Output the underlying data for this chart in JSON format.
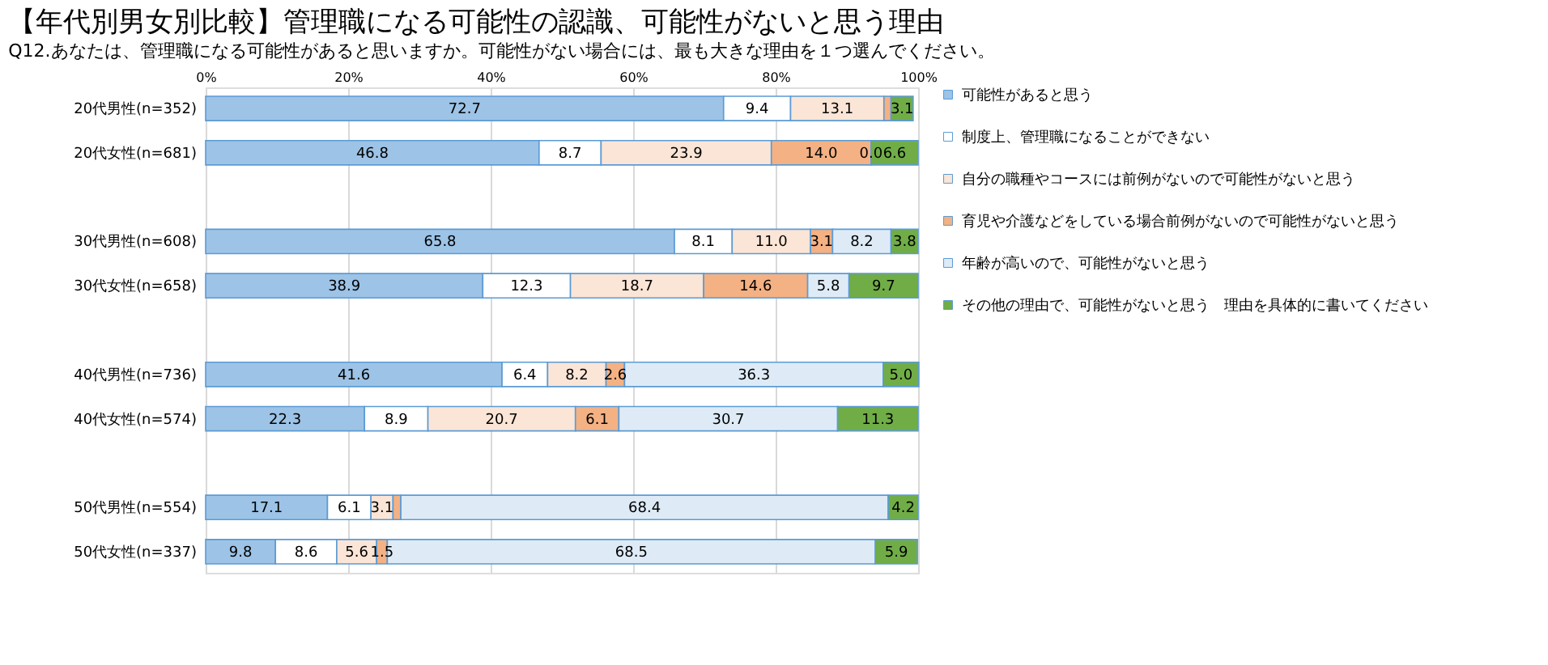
{
  "chart_data": {
    "type": "bar",
    "orientation": "horizontal",
    "stacked": true,
    "title": "【年代別男女別比較】管理職になる可能性の認識、可能性がないと思う理由",
    "subtitle": "Q12.あなたは、管理職になる可能性があると思いますか。可能性がない場合には、最も大きな理由を１つ選んでください。",
    "categories": [
      "20代男性(n=352)",
      "20代女性(n=681)",
      null,
      "30代男性(n=608)",
      "30代女性(n=658)",
      null,
      "40代男性(n=736)",
      "40代女性(n=574)",
      null,
      "50代男性(n=554)",
      "50代女性(n=337)"
    ],
    "series": [
      {
        "name": "可能性があると思う",
        "color": "#9dc3e6",
        "values": [
          72.7,
          46.8,
          null,
          65.8,
          38.9,
          null,
          41.6,
          22.3,
          null,
          17.1,
          9.8
        ],
        "value_labels": [
          "72.7",
          "46.8",
          null,
          "65.8",
          "38.9",
          null,
          "41.6",
          "22.3",
          null,
          "17.1",
          "9.8"
        ]
      },
      {
        "name": "制度上、管理職になることができない",
        "color": "#ffffff",
        "values": [
          9.4,
          8.7,
          null,
          8.1,
          12.3,
          null,
          6.4,
          8.9,
          null,
          6.1,
          8.6
        ],
        "value_labels": [
          "9.4",
          "8.7",
          null,
          "8.1",
          "12.3",
          null,
          "6.4",
          "8.9",
          null,
          "6.1",
          "8.6"
        ]
      },
      {
        "name": "自分の職種やコースには前例がないので可能性がないと思う",
        "color": "#fbe5d6",
        "values": [
          13.1,
          23.9,
          null,
          11.0,
          18.7,
          null,
          8.2,
          20.7,
          null,
          3.1,
          5.6
        ],
        "value_labels": [
          "13.1",
          "23.9",
          null,
          "11.0",
          "18.7",
          null,
          "8.2",
          "20.7",
          null,
          "3.1",
          "5.6"
        ]
      },
      {
        "name": "育児や介護などをしている場合前例がないので可能性がないと思う",
        "color": "#f4b183",
        "values": [
          1.0,
          14.0,
          null,
          3.1,
          14.6,
          null,
          2.6,
          6.1,
          null,
          1.1,
          1.5
        ],
        "value_labels": [
          null,
          "14.0",
          null,
          "3.1",
          "14.6",
          null,
          "2.6",
          "6.1",
          null,
          null,
          "1.5"
        ]
      },
      {
        "name": "年齢が高いので、可能性がないと思う",
        "color": "#deebf7",
        "values": [
          null,
          0.0,
          null,
          8.2,
          5.8,
          null,
          36.3,
          30.7,
          null,
          68.4,
          68.5
        ],
        "value_labels": [
          null,
          "0.0",
          null,
          "8.2",
          "5.8",
          null,
          "36.3",
          "30.7",
          null,
          "68.4",
          "68.5"
        ]
      },
      {
        "name": "その他の理由で、可能性がないと思う　理由を具体的に書いてください",
        "color": "#70ad47",
        "values": [
          3.1,
          6.6,
          null,
          3.8,
          9.7,
          null,
          5.0,
          11.3,
          null,
          4.2,
          5.9
        ],
        "value_labels": [
          "3.1",
          "6.6",
          null,
          "3.8",
          "9.7",
          null,
          "5.0",
          "11.3",
          null,
          "4.2",
          "5.9"
        ]
      }
    ],
    "xlim": [
      0,
      100
    ],
    "xticks": [
      {
        "value": 0,
        "label": "0%"
      },
      {
        "value": 20,
        "label": "20%"
      },
      {
        "value": 40,
        "label": "40%"
      },
      {
        "value": 60,
        "label": "60%"
      },
      {
        "value": 80,
        "label": "80%"
      },
      {
        "value": 100,
        "label": "100%"
      }
    ],
    "grid": "x",
    "legend": "right"
  }
}
